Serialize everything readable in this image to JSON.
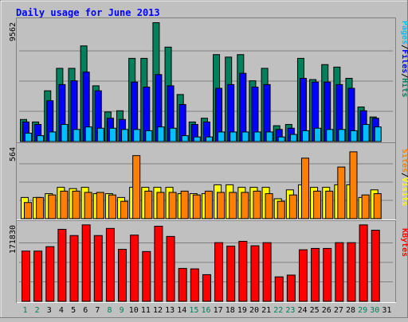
{
  "title": "Daily usage for June 2013",
  "colors": {
    "hits": "#00805c",
    "files": "#0000ff",
    "pages": "#00c0ff",
    "visits": "#ffff00",
    "sites": "#ff8000",
    "kbytes": "#ff0000",
    "title": "#0000ff",
    "weekend_day": "#00805c",
    "weekday": "#000000"
  },
  "chart_data": [
    {
      "type": "bar",
      "panel": "hits",
      "ymax_label": "9562",
      "ylim": [
        0,
        9562
      ],
      "legend": [
        "Pages",
        "/",
        "Files",
        "/",
        "Hits"
      ],
      "categories": [
        "1",
        "2",
        "3",
        "4",
        "5",
        "6",
        "7",
        "8",
        "9",
        "10",
        "11",
        "12",
        "13",
        "14",
        "15",
        "16",
        "17",
        "18",
        "19",
        "20",
        "21",
        "22",
        "23",
        "24",
        "25",
        "26",
        "27",
        "28",
        "29",
        "30",
        "31"
      ],
      "series": [
        {
          "name": "Hits",
          "values": [
            1800,
            1600,
            4100,
            5900,
            5900,
            7700,
            4500,
            2400,
            2500,
            6700,
            6700,
            9562,
            7600,
            3800,
            1600,
            1900,
            7000,
            6800,
            7000,
            4900,
            5900,
            1300,
            1400,
            6700,
            5000,
            6200,
            6000,
            5100,
            2800,
            2000,
            0
          ]
        },
        {
          "name": "Files",
          "values": [
            1600,
            1400,
            3300,
            4600,
            4900,
            5600,
            4100,
            1900,
            1800,
            4800,
            4400,
            5400,
            4500,
            3000,
            1400,
            1600,
            4300,
            4600,
            5500,
            4400,
            4600,
            1000,
            1100,
            5100,
            4800,
            4800,
            4600,
            4300,
            2500,
            1900,
            0
          ]
        },
        {
          "name": "Pages",
          "values": [
            700,
            500,
            800,
            1400,
            1000,
            1200,
            1100,
            1100,
            1000,
            1000,
            900,
            1200,
            1100,
            500,
            400,
            400,
            800,
            800,
            800,
            800,
            800,
            400,
            600,
            900,
            1100,
            1000,
            1000,
            900,
            1400,
            1200,
            0
          ]
        }
      ]
    },
    {
      "type": "bar",
      "panel": "visits",
      "ymax_label": "564",
      "ylim": [
        0,
        564
      ],
      "legend": [
        "Sites",
        "/",
        "Visits"
      ],
      "categories": [
        "1",
        "2",
        "3",
        "4",
        "5",
        "6",
        "7",
        "8",
        "9",
        "10",
        "11",
        "12",
        "13",
        "14",
        "15",
        "16",
        "17",
        "18",
        "19",
        "20",
        "21",
        "22",
        "23",
        "24",
        "25",
        "26",
        "27",
        "28",
        "29",
        "30",
        "31"
      ],
      "series": [
        {
          "name": "Visits",
          "values": [
            170,
            170,
            200,
            250,
            240,
            250,
            200,
            200,
            170,
            250,
            250,
            250,
            250,
            200,
            200,
            200,
            270,
            270,
            250,
            250,
            250,
            160,
            230,
            270,
            250,
            250,
            270,
            270,
            170,
            230,
            0
          ]
        },
        {
          "name": "Sites",
          "values": [
            130,
            170,
            190,
            220,
            220,
            210,
            210,
            190,
            140,
            500,
            220,
            210,
            210,
            220,
            190,
            220,
            210,
            210,
            210,
            220,
            200,
            140,
            190,
            480,
            220,
            220,
            410,
            530,
            190,
            200,
            0
          ]
        }
      ]
    },
    {
      "type": "bar",
      "panel": "kbytes",
      "ymax_label": "171830",
      "ylim": [
        0,
        171830
      ],
      "legend": [
        "KBytes"
      ],
      "categories": [
        "1",
        "2",
        "3",
        "4",
        "5",
        "6",
        "7",
        "8",
        "9",
        "10",
        "11",
        "12",
        "13",
        "14",
        "15",
        "16",
        "17",
        "18",
        "19",
        "20",
        "21",
        "22",
        "23",
        "24",
        "25",
        "26",
        "27",
        "28",
        "29",
        "30",
        "31"
      ],
      "series": [
        {
          "name": "KBytes",
          "values": [
            114000,
            114000,
            124000,
            163000,
            149000,
            173000,
            149000,
            165000,
            118000,
            150000,
            113000,
            170000,
            147000,
            75000,
            74000,
            61000,
            133000,
            125000,
            136000,
            126000,
            133000,
            56000,
            60000,
            117000,
            120000,
            120000,
            133000,
            133000,
            173000,
            161000,
            0
          ]
        }
      ]
    }
  ],
  "x_labels": [
    {
      "label": "1",
      "weekend": true
    },
    {
      "label": "2",
      "weekend": true
    },
    {
      "label": "3",
      "weekend": false
    },
    {
      "label": "4",
      "weekend": false
    },
    {
      "label": "5",
      "weekend": false
    },
    {
      "label": "6",
      "weekend": false
    },
    {
      "label": "7",
      "weekend": false
    },
    {
      "label": "8",
      "weekend": true
    },
    {
      "label": "9",
      "weekend": true
    },
    {
      "label": "10",
      "weekend": false
    },
    {
      "label": "11",
      "weekend": false
    },
    {
      "label": "12",
      "weekend": false
    },
    {
      "label": "13",
      "weekend": false
    },
    {
      "label": "14",
      "weekend": false
    },
    {
      "label": "15",
      "weekend": true
    },
    {
      "label": "16",
      "weekend": true
    },
    {
      "label": "17",
      "weekend": false
    },
    {
      "label": "18",
      "weekend": false
    },
    {
      "label": "19",
      "weekend": false
    },
    {
      "label": "20",
      "weekend": false
    },
    {
      "label": "21",
      "weekend": false
    },
    {
      "label": "22",
      "weekend": true
    },
    {
      "label": "23",
      "weekend": true
    },
    {
      "label": "24",
      "weekend": false
    },
    {
      "label": "25",
      "weekend": false
    },
    {
      "label": "26",
      "weekend": false
    },
    {
      "label": "27",
      "weekend": false
    },
    {
      "label": "28",
      "weekend": false
    },
    {
      "label": "29",
      "weekend": true
    },
    {
      "label": "30",
      "weekend": true
    },
    {
      "label": "31",
      "weekend": false
    }
  ]
}
